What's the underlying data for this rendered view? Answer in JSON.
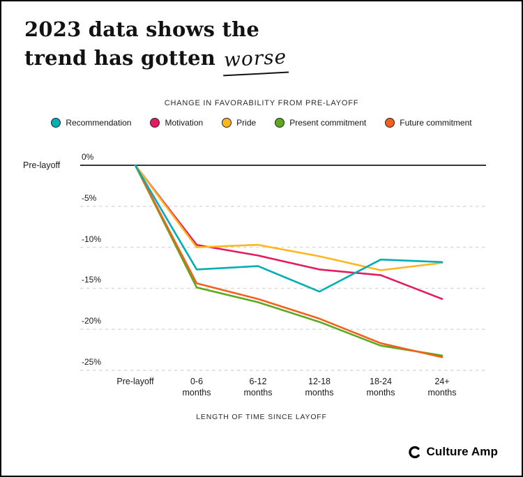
{
  "page": {
    "title_line1": "2023 data shows the",
    "title_line2_prefix": "trend has gotten ",
    "title_line2_emphasis": "worse"
  },
  "chart_data": {
    "type": "line",
    "title": "CHANGE IN FAVORABILITY FROM PRE-LAYOFF",
    "xlabel": "LENGTH OF TIME SINCE LAYOFF",
    "ylabel": "",
    "y_axis_annotation": "Pre-layoff",
    "ylim": [
      0,
      -25
    ],
    "grid": "horizontal-dashed",
    "legend_position": "top",
    "categories": [
      "Pre-layoff",
      "0-6 months",
      "6-12 months",
      "12-18 months",
      "18-24 months",
      "24+ months"
    ],
    "yticks": [
      {
        "label": "0%",
        "value": 0
      },
      {
        "label": "-5%",
        "value": -5
      },
      {
        "label": "-10%",
        "value": -10
      },
      {
        "label": "-15%",
        "value": -15
      },
      {
        "label": "-20%",
        "value": -20
      },
      {
        "label": "-25%",
        "value": -25
      }
    ],
    "series": [
      {
        "name": "Recommendation",
        "color": "#00AEB4",
        "values": [
          0,
          -12.7,
          -12.3,
          -15.4,
          -11.5,
          -11.8
        ]
      },
      {
        "name": "Motivation",
        "color": "#E51A5F",
        "values": [
          0,
          -9.7,
          -11.0,
          -12.7,
          -13.4,
          -16.3
        ]
      },
      {
        "name": "Pride",
        "color": "#FDB71C",
        "values": [
          0,
          -10.0,
          -9.7,
          -11.1,
          -12.8,
          -11.9
        ]
      },
      {
        "name": "Present commitment",
        "color": "#5CA81E",
        "values": [
          0,
          -14.9,
          -16.7,
          -19.1,
          -22.0,
          -23.2
        ]
      },
      {
        "name": "Future commitment",
        "color": "#F4601C",
        "values": [
          0,
          -14.4,
          -16.3,
          -18.7,
          -21.7,
          -23.4
        ]
      }
    ]
  },
  "footer": {
    "brand": "Culture Amp"
  }
}
